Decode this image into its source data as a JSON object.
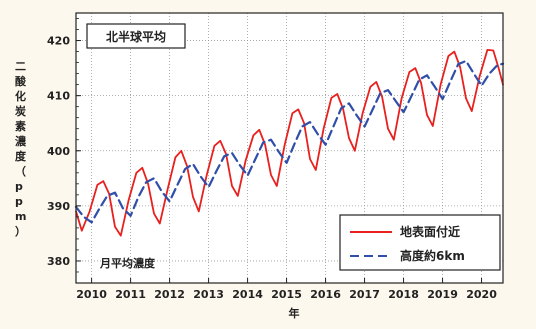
{
  "chart_data": {
    "type": "line",
    "title": "北半球平均",
    "subtitle": "月平均濃度",
    "xlabel": "年",
    "ylabel": "二酸化炭素濃度（ppm）",
    "xlim": [
      2009.6,
      2020.55
    ],
    "ylim": [
      376,
      425
    ],
    "x_ticks": [
      "2010",
      "2011",
      "2012",
      "2013",
      "2014",
      "2015",
      "2016",
      "2017",
      "2018",
      "2019",
      "2020"
    ],
    "y_ticks": [
      "380",
      "390",
      "400",
      "410",
      "420"
    ],
    "grid": true,
    "legend_position": "bottom-right",
    "series": [
      {
        "name": "地表面付近",
        "color": "#e8201e",
        "style": "solid",
        "x": [
          2009.6,
          2009.75,
          2009.95,
          2010.15,
          2010.3,
          2010.45,
          2010.6,
          2010.75,
          2010.95,
          2011.15,
          2011.3,
          2011.45,
          2011.6,
          2011.75,
          2011.95,
          2012.15,
          2012.3,
          2012.45,
          2012.6,
          2012.75,
          2012.95,
          2013.15,
          2013.3,
          2013.45,
          2013.6,
          2013.75,
          2013.95,
          2014.15,
          2014.3,
          2014.45,
          2014.6,
          2014.75,
          2014.95,
          2015.15,
          2015.3,
          2015.45,
          2015.6,
          2015.75,
          2015.95,
          2016.15,
          2016.3,
          2016.45,
          2016.6,
          2016.75,
          2016.95,
          2017.15,
          2017.3,
          2017.45,
          2017.6,
          2017.75,
          2017.95,
          2018.15,
          2018.3,
          2018.45,
          2018.6,
          2018.75,
          2018.95,
          2019.15,
          2019.3,
          2019.45,
          2019.6,
          2019.75,
          2019.95,
          2020.15,
          2020.3,
          2020.45,
          2020.55
        ],
        "values": [
          389.0,
          385.5,
          389.0,
          393.8,
          394.5,
          392.2,
          386.2,
          384.6,
          391.0,
          396.0,
          396.9,
          394.0,
          388.6,
          386.8,
          393.0,
          398.8,
          400.0,
          397.2,
          391.6,
          389.0,
          395.5,
          400.9,
          401.8,
          399.4,
          393.6,
          391.8,
          398.2,
          402.8,
          403.8,
          401.1,
          395.6,
          393.6,
          401.0,
          406.8,
          407.5,
          405.0,
          398.5,
          396.5,
          404.0,
          409.6,
          410.3,
          407.6,
          402.3,
          400.0,
          406.8,
          411.6,
          412.5,
          409.8,
          404.0,
          402.0,
          409.5,
          414.3,
          415.0,
          412.3,
          406.5,
          404.5,
          412.0,
          417.2,
          418.0,
          415.2,
          409.5,
          407.2,
          413.5,
          418.3,
          418.2,
          414.7,
          412.0
        ]
      },
      {
        "name": "高度約6km",
        "color": "#2f4fa8",
        "style": "dashed",
        "x": [
          2009.6,
          2009.8,
          2010.0,
          2010.2,
          2010.4,
          2010.6,
          2010.8,
          2011.0,
          2011.2,
          2011.4,
          2011.6,
          2011.8,
          2012.0,
          2012.2,
          2012.4,
          2012.6,
          2012.8,
          2013.0,
          2013.2,
          2013.4,
          2013.6,
          2013.8,
          2014.0,
          2014.2,
          2014.4,
          2014.6,
          2014.8,
          2015.0,
          2015.2,
          2015.4,
          2015.6,
          2015.8,
          2016.0,
          2016.2,
          2016.4,
          2016.6,
          2016.8,
          2017.0,
          2017.2,
          2017.4,
          2017.6,
          2017.8,
          2018.0,
          2018.2,
          2018.4,
          2018.6,
          2018.8,
          2019.0,
          2019.2,
          2019.4,
          2019.6,
          2019.8,
          2020.0,
          2020.2,
          2020.4,
          2020.55
        ],
        "values": [
          389.8,
          388.0,
          387.0,
          389.5,
          391.8,
          392.4,
          389.6,
          388.2,
          391.6,
          394.3,
          395.0,
          392.6,
          390.8,
          393.8,
          396.7,
          397.6,
          395.3,
          393.4,
          396.3,
          399.0,
          399.6,
          397.4,
          395.5,
          398.5,
          401.5,
          402.0,
          399.8,
          397.8,
          401.2,
          404.4,
          405.2,
          403.0,
          401.1,
          404.4,
          407.7,
          408.6,
          406.4,
          404.4,
          407.4,
          410.4,
          411.0,
          409.0,
          407.0,
          409.9,
          412.9,
          413.7,
          411.6,
          409.4,
          412.6,
          415.7,
          416.3,
          414.0,
          411.8,
          414.0,
          415.5,
          415.8
        ]
      }
    ]
  }
}
